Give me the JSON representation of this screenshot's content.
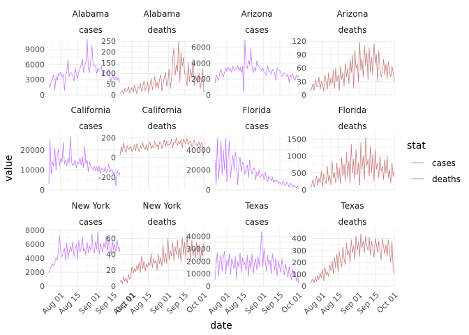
{
  "chart_data": {
    "type": "line",
    "title": "",
    "xlabel": "date",
    "ylabel": "value",
    "grid": true,
    "legend": {
      "title": "stat",
      "position": "right",
      "entries": [
        {
          "label": "cases",
          "color": "#c77cff"
        },
        {
          "label": "deaths",
          "color": "#c97f7f"
        }
      ]
    },
    "x_range": [
      "2020-07-22",
      "2020-10-01"
    ],
    "x_ticks": [
      {
        "date": "2020-08-01",
        "label": "Aug 01"
      },
      {
        "date": "2020-08-15",
        "label": "Aug 15"
      },
      {
        "date": "2020-09-01",
        "label": "Sep 01"
      },
      {
        "date": "2020-09-15",
        "label": "Sep 15"
      },
      {
        "date": "2020-10-01",
        "label": "Oct 01"
      }
    ],
    "panels": [
      {
        "state": "Alabama",
        "stat": "cases",
        "ylim": [
          0,
          11000
        ],
        "yticks": [
          0,
          3000,
          6000,
          9000
        ],
        "values": [
          2000,
          1500,
          2600,
          3200,
          4000,
          1000,
          3600,
          2800,
          4200,
          4000,
          4500,
          3500,
          4100,
          900,
          3800,
          4500,
          6900,
          3600,
          4400,
          4200,
          3800,
          2700,
          5200,
          4100,
          3300,
          4600,
          5200,
          6000,
          7100,
          4400,
          5900,
          6500,
          11000,
          5100,
          4400,
          7000,
          9800,
          6000,
          5600,
          5800,
          4200,
          5300,
          4800,
          5000,
          5700,
          3600,
          4900,
          4600,
          4300,
          3900,
          5000,
          3700,
          2400,
          4200,
          3300,
          3000,
          3600,
          2800,
          3400,
          2600,
          2300,
          2100,
          3000,
          3000,
          2400,
          2500,
          1600,
          1800,
          1300,
          2000,
          1100
        ]
      },
      {
        "state": "Alabama",
        "stat": "deaths",
        "ylim": [
          0,
          260
        ],
        "yticks": [
          0,
          50,
          100,
          150,
          200,
          250
        ],
        "values": [
          8,
          12,
          20,
          5,
          30,
          15,
          18,
          40,
          10,
          22,
          35,
          12,
          45,
          28,
          5,
          38,
          30,
          52,
          15,
          40,
          65,
          20,
          35,
          60,
          10,
          45,
          75,
          25,
          50,
          85,
          32,
          60,
          30,
          72,
          95,
          18,
          55,
          80,
          105,
          40,
          65,
          120,
          30,
          75,
          160,
          220,
          90,
          140,
          110,
          250,
          60,
          200,
          130,
          175,
          100,
          90,
          40,
          150,
          60,
          120,
          80,
          170,
          45,
          90,
          70,
          55,
          100,
          30,
          60,
          120,
          12
        ]
      },
      {
        "state": "Arizona",
        "stat": "cases",
        "ylim": [
          0,
          7000
        ],
        "yticks": [
          0,
          2000,
          4000,
          6000
        ],
        "values": [
          1500,
          2500,
          2100,
          1800,
          2700,
          3200,
          2600,
          2300,
          2800,
          3400,
          2900,
          3500,
          3100,
          3300,
          2800,
          3600,
          3200,
          3100,
          3300,
          3700,
          3000,
          3500,
          2800,
          3600,
          400,
          6900,
          3700,
          3300,
          4300,
          3800,
          5800,
          3500,
          2800,
          3400,
          3000,
          4300,
          3700,
          3500,
          3300,
          3000,
          3400,
          2900,
          2700,
          2400,
          3600,
          3000,
          2900,
          2600,
          3200,
          3000,
          2700,
          1800,
          3400,
          3100,
          3000,
          2900,
          2300,
          2500,
          2800,
          2500,
          2300,
          2600,
          1500,
          2500,
          2200,
          2700,
          2000,
          1800,
          2500,
          2200,
          2400
        ]
      },
      {
        "state": "Arizona",
        "stat": "deaths",
        "ylim": [
          0,
          125
        ],
        "yticks": [
          0,
          30,
          60,
          90,
          120
        ],
        "values": [
          8,
          15,
          25,
          10,
          35,
          20,
          18,
          40,
          12,
          30,
          25,
          8,
          45,
          30,
          12,
          50,
          20,
          38,
          25,
          55,
          15,
          60,
          30,
          45,
          10,
          65,
          35,
          50,
          20,
          70,
          40,
          60,
          25,
          80,
          50,
          90,
          15,
          100,
          60,
          70,
          30,
          118,
          55,
          80,
          40,
          110,
          65,
          95,
          35,
          105,
          50,
          85,
          45,
          115,
          70,
          90,
          30,
          100,
          60,
          40,
          50,
          80,
          45,
          70,
          35,
          75,
          55,
          40,
          65,
          50,
          30
        ]
      },
      {
        "state": "California",
        "stat": "cases",
        "ylim": [
          0,
          28000
        ],
        "yticks": [
          0,
          10000,
          20000
        ],
        "values": [
          3000,
          25000,
          8000,
          14000,
          12000,
          21000,
          10000,
          17000,
          20500,
          12000,
          16000,
          14000,
          24000,
          13000,
          15000,
          12000,
          16000,
          13500,
          27000,
          14000,
          12000,
          13000,
          15000,
          11000,
          14000,
          13000,
          16000,
          12000,
          17000,
          11000,
          22000,
          13000,
          15000,
          9000,
          14000,
          12000,
          11000,
          10000,
          12000,
          9500,
          11500,
          9000,
          12000,
          8000,
          11000,
          10000,
          9000,
          11500,
          8500,
          10000,
          13000,
          9000,
          10000,
          9500,
          8000,
          9000,
          1800,
          9500,
          8000,
          8500,
          6000,
          7000,
          8000,
          2500,
          5000,
          7500,
          4000,
          6500,
          3500,
          5000,
          2300
        ]
      },
      {
        "state": "California",
        "stat": "deaths",
        "ylim": [
          -330,
          240
        ],
        "yticks": [
          -200,
          0,
          200
        ],
        "values": [
          20,
          110,
          60,
          150,
          90,
          50,
          120,
          80,
          100,
          110,
          60,
          90,
          130,
          70,
          140,
          100,
          60,
          120,
          90,
          150,
          100,
          80,
          130,
          70,
          140,
          160,
          90,
          120,
          100,
          170,
          110,
          130,
          80,
          160,
          150,
          90,
          140,
          180,
          110,
          170,
          120,
          140,
          130,
          190,
          100,
          160,
          150,
          200,
          120,
          170,
          140,
          180,
          100,
          190,
          160,
          140,
          200,
          130,
          160,
          170,
          110,
          150,
          180,
          130,
          140,
          120,
          160,
          100,
          150,
          130,
          20
        ]
      },
      {
        "state": "Florida",
        "stat": "cases",
        "ylim": [
          0,
          56000
        ],
        "yticks": [
          0,
          20000,
          40000
        ],
        "values": [
          30000,
          5000,
          52000,
          10000,
          28000,
          50000,
          15000,
          40000,
          20000,
          52000,
          8000,
          32000,
          49000,
          12000,
          25000,
          35000,
          20000,
          38000,
          30000,
          5000,
          24000,
          33000,
          18000,
          28000,
          26000,
          15000,
          22000,
          25000,
          12000,
          30000,
          20000,
          16000,
          21000,
          22000,
          10000,
          18000,
          14000,
          20000,
          12000,
          15000,
          16000,
          10000,
          18000,
          12000,
          8000,
          14000,
          11000,
          9000,
          13000,
          7000,
          10000,
          8000,
          9500,
          6500,
          8000,
          7000,
          5000,
          9000,
          6000,
          4000,
          8000,
          5500,
          3000,
          7000,
          4500,
          2500,
          5000,
          3500,
          2000,
          4000,
          1500
        ]
      },
      {
        "state": "Florida",
        "stat": "deaths",
        "ylim": [
          0,
          1650
        ],
        "yticks": [
          0,
          500,
          1000,
          1500
        ],
        "values": [
          50,
          150,
          300,
          80,
          250,
          400,
          120,
          350,
          200,
          550,
          100,
          480,
          300,
          180,
          700,
          250,
          420,
          150,
          850,
          350,
          500,
          200,
          800,
          300,
          650,
          180,
          950,
          400,
          750,
          250,
          1100,
          380,
          850,
          200,
          1350,
          500,
          900,
          300,
          1200,
          450,
          800,
          150,
          1400,
          600,
          1000,
          300,
          1550,
          700,
          900,
          400,
          1300,
          500,
          1050,
          250,
          1200,
          600,
          800,
          350,
          1000,
          550,
          700,
          300,
          900,
          500,
          1000,
          350,
          600,
          200,
          800,
          400,
          550
        ]
      },
      {
        "state": "New York",
        "stat": "cases",
        "ylim": [
          0,
          8200
        ],
        "yticks": [
          0,
          2000,
          4000,
          6000,
          8000
        ],
        "values": [
          1900,
          2500,
          2800,
          3200,
          2900,
          3600,
          4000,
          3700,
          5000,
          7200,
          4600,
          4200,
          4800,
          5500,
          3700,
          6200,
          4000,
          4900,
          5700,
          5000,
          6400,
          4200,
          5300,
          6000,
          3900,
          6600,
          4800,
          5500,
          7000,
          5000,
          5400,
          4400,
          6300,
          4800,
          5800,
          5100,
          7500,
          5200,
          4700,
          6400,
          5300,
          7800,
          4500,
          6000,
          5600,
          4900,
          6200,
          5400,
          7200,
          5000,
          6800,
          5700,
          4600,
          6500,
          5200,
          6000,
          4800,
          6700,
          5500,
          4900,
          6200,
          5600,
          4700,
          6300,
          5100,
          6500,
          4600,
          5800,
          5300,
          3000,
          2100
        ]
      },
      {
        "state": "New York",
        "stat": "deaths",
        "ylim": [
          0,
          72
        ],
        "yticks": [
          0,
          20,
          40,
          60
        ],
        "values": [
          5,
          8,
          3,
          12,
          6,
          10,
          4,
          15,
          9,
          13,
          25,
          16,
          22,
          18,
          26,
          20,
          30,
          17,
          38,
          22,
          32,
          19,
          28,
          24,
          30,
          26,
          41,
          23,
          35,
          29,
          33,
          20,
          40,
          28,
          36,
          25,
          52,
          30,
          42,
          28,
          60,
          33,
          45,
          38,
          55,
          32,
          50,
          40,
          58,
          35,
          48,
          30,
          62,
          40,
          55,
          36,
          65,
          42,
          50,
          33,
          58,
          38,
          48,
          35,
          55,
          40,
          52,
          30,
          45,
          38,
          55
        ]
      },
      {
        "state": "Texas",
        "stat": "cases",
        "ylim": [
          0,
          46000
        ],
        "yticks": [
          0,
          10000,
          20000,
          30000,
          40000
        ],
        "values": [
          5000,
          18000,
          27000,
          8000,
          20000,
          25000,
          12000,
          23000,
          28000,
          10000,
          21000,
          16000,
          26000,
          9000,
          22000,
          18000,
          14000,
          24000,
          6000,
          20000,
          15000,
          27000,
          11000,
          23000,
          17000,
          19000,
          12000,
          25000,
          8000,
          21000,
          14000,
          26000,
          10000,
          18000,
          22000,
          13000,
          24000,
          16000,
          28000,
          44000,
          15000,
          30000,
          20000,
          12000,
          25000,
          17000,
          21000,
          10000,
          26000,
          18000,
          13000,
          23000,
          8000,
          20000,
          16000,
          11000,
          22000,
          14000,
          9000,
          18000,
          12000,
          7000,
          16000,
          10000,
          5000,
          14000,
          8000,
          12000,
          4000,
          9000,
          2000
        ]
      },
      {
        "state": "Texas",
        "stat": "deaths",
        "ylim": [
          0,
          480
        ],
        "yticks": [
          0,
          100,
          200,
          300,
          400
        ],
        "values": [
          20,
          45,
          60,
          30,
          75,
          40,
          90,
          55,
          110,
          70,
          140,
          45,
          160,
          95,
          120,
          80,
          180,
          130,
          210,
          100,
          240,
          150,
          270,
          120,
          290,
          200,
          160,
          330,
          230,
          180,
          360,
          260,
          300,
          200,
          390,
          280,
          340,
          230,
          420,
          300,
          370,
          250,
          440,
          320,
          380,
          280,
          420,
          340,
          300,
          410,
          260,
          380,
          320,
          240,
          400,
          350,
          280,
          380,
          300,
          220,
          400,
          330,
          270,
          350,
          250,
          390,
          300,
          200,
          380,
          150,
          100
        ]
      }
    ]
  }
}
